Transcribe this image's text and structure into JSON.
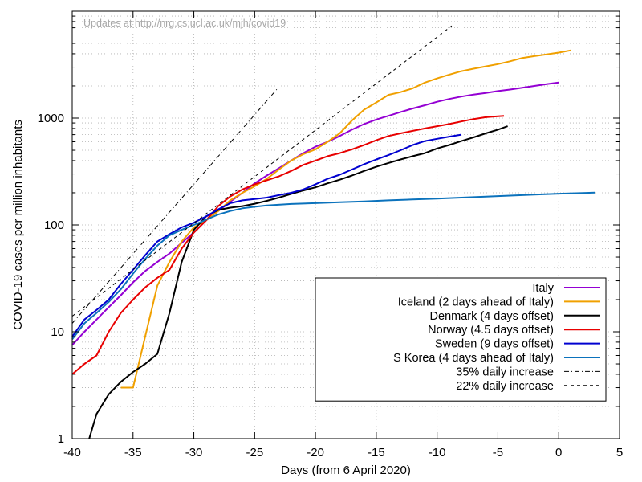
{
  "chart_data": {
    "type": "line",
    "watermark": "Updates at http://nrg.cs.ucl.ac.uk/mjh/covid19",
    "xlabel": "Days (from 6 April 2020)",
    "ylabel": "COVID-19 cases per million inhabitants",
    "xlim": [
      -40,
      5
    ],
    "ylim": [
      1,
      10000
    ],
    "yscale": "log",
    "grid": true,
    "legend_position": "bottom-right",
    "x_ticks": [
      -40,
      -35,
      -30,
      -25,
      -20,
      -15,
      -10,
      -5,
      0,
      5
    ],
    "y_ticks": [
      1,
      10,
      100,
      1000
    ],
    "series": [
      {
        "name": "Italy",
        "color": "#9400d3",
        "dash": "none",
        "x": [
          -40,
          -39,
          -38,
          -37,
          -36,
          -35,
          -34,
          -33,
          -32,
          -31,
          -30,
          -29,
          -28,
          -27,
          -26,
          -25,
          -24,
          -23,
          -22,
          -21,
          -20,
          -19,
          -18,
          -17,
          -16,
          -15,
          -14,
          -13,
          -12,
          -11,
          -10,
          -9,
          -8,
          -7,
          -6,
          -5,
          -4,
          -3,
          -2,
          -1,
          0
        ],
        "y": [
          7.5,
          10,
          13,
          17,
          22,
          29,
          37,
          45,
          54,
          68,
          85,
          110,
          135,
          165,
          200,
          245,
          290,
          340,
          400,
          470,
          540,
          600,
          680,
          780,
          880,
          970,
          1050,
          1140,
          1230,
          1320,
          1420,
          1510,
          1590,
          1660,
          1720,
          1790,
          1850,
          1920,
          2000,
          2080,
          2150
        ]
      },
      {
        "name": "Iceland (2 days ahead of Italy)",
        "color": "#f0a000",
        "dash": "none",
        "x": [
          -36,
          -35,
          -34,
          -33,
          -32,
          -31,
          -30,
          -29,
          -28,
          -27,
          -26,
          -25,
          -24,
          -23,
          -22,
          -21,
          -20,
          -19,
          -18,
          -17,
          -16,
          -15,
          -14,
          -13,
          -12,
          -11,
          -10,
          -9,
          -8,
          -7,
          -6,
          -5,
          -4,
          -3,
          -2,
          -1,
          0,
          1
        ],
        "y": [
          3,
          3,
          9,
          27,
          45,
          70,
          95,
          110,
          135,
          170,
          200,
          230,
          270,
          330,
          400,
          460,
          510,
          600,
          720,
          950,
          1200,
          1400,
          1650,
          1750,
          1900,
          2150,
          2350,
          2550,
          2750,
          2900,
          3050,
          3200,
          3400,
          3650,
          3800,
          3950,
          4100,
          4300
        ]
      },
      {
        "name": "Denmark (4 days offset)",
        "color": "#000000",
        "dash": "none",
        "x": [
          -38.6,
          -38,
          -37,
          -36,
          -35,
          -34,
          -33,
          -32,
          -31,
          -30,
          -29,
          -28,
          -27,
          -26,
          -25,
          -24,
          -23,
          -22,
          -21,
          -20,
          -19,
          -18,
          -17,
          -16,
          -15,
          -14,
          -13,
          -12,
          -11,
          -10,
          -9,
          -8,
          -7,
          -6,
          -5,
          -4.2
        ],
        "y": [
          0.9,
          1.7,
          2.6,
          3.4,
          4.2,
          5.0,
          6.2,
          15,
          45,
          90,
          120,
          138,
          145,
          150,
          158,
          168,
          180,
          195,
          210,
          225,
          245,
          265,
          290,
          320,
          350,
          380,
          410,
          440,
          470,
          520,
          560,
          610,
          660,
          720,
          780,
          840
        ]
      },
      {
        "name": "Norway (4.5 days offset)",
        "color": "#e80000",
        "dash": "none",
        "x": [
          -40,
          -39,
          -38,
          -37,
          -36,
          -35,
          -34,
          -33,
          -32,
          -31,
          -30,
          -29,
          -28,
          -27,
          -26,
          -25,
          -24,
          -23,
          -22,
          -21,
          -20,
          -19,
          -18,
          -17,
          -16,
          -15,
          -14,
          -13,
          -12,
          -11,
          -10,
          -9,
          -8,
          -7,
          -6,
          -5,
          -4.5
        ],
        "y": [
          4,
          5,
          6,
          10,
          15,
          20,
          26,
          32,
          38,
          60,
          85,
          110,
          150,
          185,
          215,
          240,
          262,
          285,
          320,
          365,
          400,
          440,
          470,
          510,
          560,
          620,
          680,
          720,
          760,
          800,
          840,
          880,
          930,
          980,
          1020,
          1040,
          1050
        ]
      },
      {
        "name": "Sweden (9 days offset)",
        "color": "#0000d0",
        "dash": "none",
        "x": [
          -40,
          -39,
          -38,
          -37,
          -36,
          -35,
          -34,
          -33,
          -32,
          -31,
          -30,
          -29,
          -28,
          -27,
          -26,
          -25,
          -24,
          -23,
          -22,
          -21,
          -20,
          -19,
          -18,
          -17,
          -16,
          -15,
          -14,
          -13,
          -12,
          -11,
          -10,
          -9,
          -8
        ],
        "y": [
          9,
          13,
          16,
          20,
          28,
          38,
          52,
          70,
          82,
          95,
          105,
          120,
          140,
          160,
          170,
          175,
          180,
          190,
          200,
          215,
          240,
          270,
          295,
          330,
          370,
          410,
          450,
          500,
          560,
          610,
          640,
          670,
          700
        ]
      },
      {
        "name": "S Korea (4 days ahead of Italy)",
        "color": "#0b72bc",
        "dash": "none",
        "x": [
          -40,
          -39,
          -38,
          -37,
          -36,
          -35,
          -34,
          -33,
          -32,
          -31,
          -30,
          -29,
          -28,
          -27,
          -26,
          -25,
          -24,
          -22,
          -20,
          -18,
          -16,
          -14,
          -12,
          -10,
          -8,
          -6,
          -4,
          -2,
          0,
          2,
          3
        ],
        "y": [
          8.5,
          12,
          15,
          19,
          25,
          35,
          48,
          64,
          80,
          90,
          100,
          112,
          125,
          135,
          143,
          148,
          152,
          157,
          160,
          163,
          166,
          170,
          173,
          176,
          180,
          184,
          188,
          192,
          196,
          199,
          201
        ]
      },
      {
        "name": "35% daily increase",
        "color": "#000000",
        "dash": "6,3,1,3",
        "x": [
          -40,
          -23.1
        ],
        "y": [
          12,
          1900.0
        ]
      },
      {
        "name": "22% daily increase",
        "color": "#000000",
        "dash": "4,4",
        "x": [
          -40,
          -8.8
        ],
        "y": [
          14,
          7300.0
        ]
      }
    ]
  }
}
